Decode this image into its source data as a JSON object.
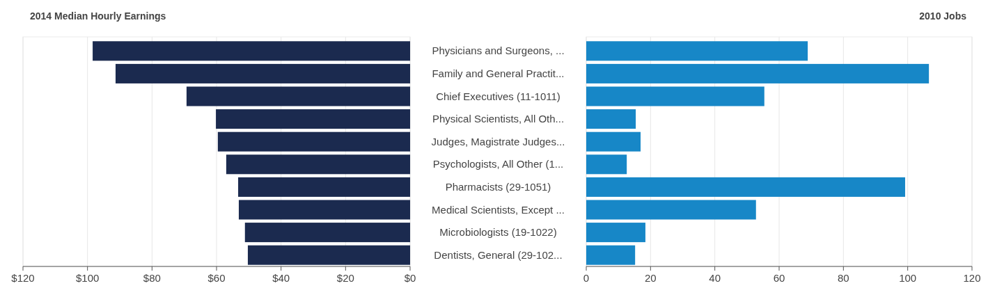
{
  "chart_data": [
    {
      "type": "bar",
      "orientation": "horizontal",
      "title": "2014 Median Hourly Earnings",
      "categories": [
        "Physicians and Surgeons, ...",
        "Family and General Practit...",
        "Chief Executives (11-1011)",
        "Physical Scientists, All Oth...",
        "Judges, Magistrate Judges...",
        "Psychologists, All Other (1...",
        "Pharmacists (29-1051)",
        "Medical Scientists, Except ...",
        "Microbiologists (19-1022)",
        "Dentists, General (29-102..."
      ],
      "series": [
        {
          "color": "#1b2a4f",
          "values": [
            98.4,
            91.3,
            69.3,
            60.2,
            59.6,
            57.0,
            53.3,
            53.1,
            51.2,
            50.3
          ]
        }
      ],
      "xlim": [
        120,
        0
      ],
      "xticks": [
        {
          "value": 120,
          "label": "$120"
        },
        {
          "value": 100,
          "label": "$100"
        },
        {
          "value": 80,
          "label": "$80"
        },
        {
          "value": 60,
          "label": "$60"
        },
        {
          "value": 40,
          "label": "$40"
        },
        {
          "value": 20,
          "label": "$20"
        },
        {
          "value": 0,
          "label": "$0"
        }
      ],
      "grid": "x"
    },
    {
      "type": "bar",
      "orientation": "horizontal",
      "title": "2010 Jobs",
      "series": [
        {
          "color": "#1787c7",
          "values": [
            68.9,
            106.6,
            55.4,
            15.4,
            16.9,
            12.6,
            99.2,
            52.8,
            18.4,
            15.2
          ]
        }
      ],
      "xlim": [
        0,
        120
      ],
      "xticks": [
        0,
        20,
        40,
        60,
        80,
        100,
        120
      ],
      "grid": "x",
      "tick_labels": "x"
    }
  ]
}
